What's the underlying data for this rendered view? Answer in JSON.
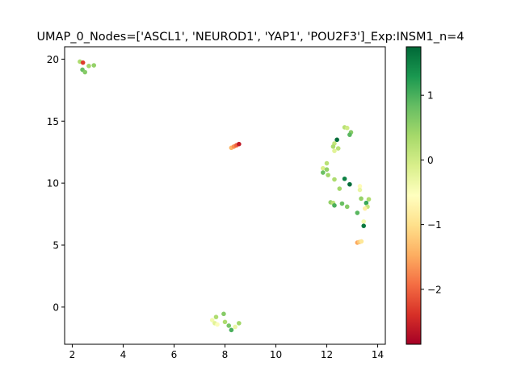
{
  "chart_data": {
    "type": "scatter",
    "title": "UMAP_0_Nodes=['ASCL1', 'NEUROD1', 'YAP1', 'POU2F3']_Exp:INSM1_n=4",
    "xlabel": "",
    "ylabel": "",
    "xlim": [
      1.7,
      14.3
    ],
    "ylim": [
      -3.0,
      21.0
    ],
    "xticks": [
      2,
      4,
      6,
      8,
      10,
      12,
      14
    ],
    "yticks": [
      0,
      5,
      10,
      15,
      20
    ],
    "grid": false,
    "colormap": "RdYlGn",
    "colorbar": {
      "min": -2.85,
      "max": 1.75,
      "ticks": [
        -2,
        -1,
        0,
        1
      ]
    },
    "points": [
      {
        "x": 2.3,
        "y": 19.8,
        "c": 0.3
      },
      {
        "x": 2.42,
        "y": 19.72,
        "c": -2.3
      },
      {
        "x": 2.65,
        "y": 19.45,
        "c": 0.4
      },
      {
        "x": 2.85,
        "y": 19.5,
        "c": 0.5
      },
      {
        "x": 2.4,
        "y": 19.15,
        "c": 0.8
      },
      {
        "x": 2.5,
        "y": 18.95,
        "c": 0.6
      },
      {
        "x": 8.25,
        "y": 12.85,
        "c": -1.4
      },
      {
        "x": 8.35,
        "y": 12.95,
        "c": -1.7
      },
      {
        "x": 8.45,
        "y": 13.05,
        "c": -2.0
      },
      {
        "x": 8.55,
        "y": 13.15,
        "c": -2.6
      },
      {
        "x": 12.7,
        "y": 14.5,
        "c": 0.2
      },
      {
        "x": 12.8,
        "y": 14.45,
        "c": 0.0
      },
      {
        "x": 12.95,
        "y": 14.1,
        "c": 0.6
      },
      {
        "x": 12.9,
        "y": 13.9,
        "c": 0.9
      },
      {
        "x": 12.4,
        "y": 13.5,
        "c": 1.7
      },
      {
        "x": 12.3,
        "y": 13.2,
        "c": 0.1
      },
      {
        "x": 12.25,
        "y": 12.95,
        "c": 0.3
      },
      {
        "x": 12.45,
        "y": 12.8,
        "c": 0.2
      },
      {
        "x": 12.3,
        "y": 12.6,
        "c": -0.2
      },
      {
        "x": 12.0,
        "y": 11.6,
        "c": 0.2
      },
      {
        "x": 11.85,
        "y": 11.2,
        "c": -0.1
      },
      {
        "x": 12.0,
        "y": 11.1,
        "c": 0.5
      },
      {
        "x": 11.85,
        "y": 10.85,
        "c": 0.8
      },
      {
        "x": 12.05,
        "y": 10.65,
        "c": 0.4
      },
      {
        "x": 12.7,
        "y": 10.35,
        "c": 1.5
      },
      {
        "x": 12.3,
        "y": 10.3,
        "c": 0.3
      },
      {
        "x": 12.9,
        "y": 9.9,
        "c": 1.7
      },
      {
        "x": 13.3,
        "y": 9.75,
        "c": -0.6
      },
      {
        "x": 13.3,
        "y": 9.45,
        "c": -0.3
      },
      {
        "x": 12.5,
        "y": 9.55,
        "c": 0.4
      },
      {
        "x": 13.35,
        "y": 8.75,
        "c": 0.5
      },
      {
        "x": 13.65,
        "y": 8.7,
        "c": 0.3
      },
      {
        "x": 12.15,
        "y": 8.45,
        "c": 0.5
      },
      {
        "x": 12.25,
        "y": 8.4,
        "c": 0.2
      },
      {
        "x": 12.3,
        "y": 8.2,
        "c": 1.0
      },
      {
        "x": 12.6,
        "y": 8.35,
        "c": 0.8
      },
      {
        "x": 12.8,
        "y": 8.1,
        "c": 0.6
      },
      {
        "x": 13.55,
        "y": 8.4,
        "c": 1.1
      },
      {
        "x": 13.6,
        "y": 8.1,
        "c": 0.1
      },
      {
        "x": 13.5,
        "y": 7.95,
        "c": -0.8
      },
      {
        "x": 13.2,
        "y": 7.6,
        "c": 0.9
      },
      {
        "x": 13.45,
        "y": 6.9,
        "c": -0.4
      },
      {
        "x": 13.45,
        "y": 6.55,
        "c": 1.6
      },
      {
        "x": 13.2,
        "y": 5.2,
        "c": -1.5
      },
      {
        "x": 13.28,
        "y": 5.25,
        "c": -1.2
      },
      {
        "x": 13.36,
        "y": 5.3,
        "c": -0.9
      },
      {
        "x": 7.5,
        "y": -1.05,
        "c": -0.4
      },
      {
        "x": 7.6,
        "y": -1.3,
        "c": -0.2
      },
      {
        "x": 7.7,
        "y": -1.4,
        "c": -0.5
      },
      {
        "x": 7.65,
        "y": -0.8,
        "c": 0.3
      },
      {
        "x": 7.95,
        "y": -0.55,
        "c": 0.6
      },
      {
        "x": 8.0,
        "y": -1.2,
        "c": 0.3
      },
      {
        "x": 8.15,
        "y": -1.5,
        "c": 0.7
      },
      {
        "x": 8.25,
        "y": -1.85,
        "c": 1.0
      },
      {
        "x": 8.4,
        "y": -1.6,
        "c": -0.3
      },
      {
        "x": 8.55,
        "y": -1.3,
        "c": 0.4
      }
    ]
  }
}
